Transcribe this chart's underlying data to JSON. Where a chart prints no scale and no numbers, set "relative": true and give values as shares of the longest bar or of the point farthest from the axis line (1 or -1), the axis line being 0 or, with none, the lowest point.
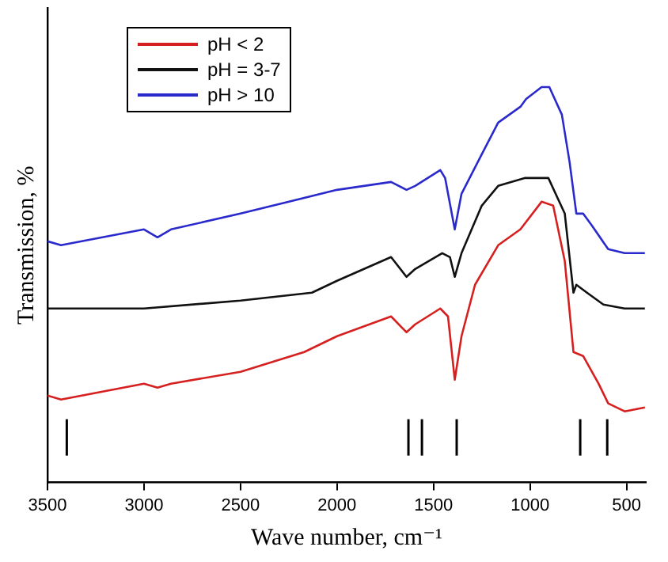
{
  "chart_data": {
    "type": "line",
    "relative": true,
    "xlabel": "Wave number, cm⁻¹",
    "ylabel": "Transmission, %",
    "xlim": [
      3500,
      400
    ],
    "xticks": [
      3500,
      3000,
      2500,
      2000,
      1500,
      1000,
      500
    ],
    "legend": "top left",
    "tick_labels": "x",
    "grid": false,
    "marker": "none",
    "line_style": "solid",
    "series": [
      {
        "name": "pH < 2",
        "color": "#d62020",
        "x": [
          3500,
          3430,
          3000,
          2930,
          2860,
          2500,
          2170,
          2000,
          1720,
          1640,
          1595,
          1465,
          1425,
          1390,
          1355,
          1285,
          1165,
          1050,
          940,
          880,
          820,
          775,
          725,
          645,
          595,
          510,
          405
        ],
        "values": [
          0.22,
          0.21,
          0.25,
          0.24,
          0.25,
          0.28,
          0.33,
          0.37,
          0.42,
          0.38,
          0.4,
          0.44,
          0.42,
          0.26,
          0.37,
          0.5,
          0.6,
          0.64,
          0.71,
          0.7,
          0.56,
          0.33,
          0.32,
          0.25,
          0.2,
          0.18,
          0.19
        ]
      },
      {
        "name": "pH = 3-7",
        "color": "#111111",
        "x": [
          3500,
          3430,
          3000,
          2500,
          2130,
          2000,
          1720,
          1640,
          1595,
          1455,
          1415,
          1390,
          1355,
          1250,
          1165,
          1025,
          905,
          820,
          775,
          760,
          705,
          620,
          510,
          405
        ],
        "values": [
          0.44,
          0.44,
          0.44,
          0.46,
          0.48,
          0.51,
          0.57,
          0.52,
          0.54,
          0.58,
          0.57,
          0.52,
          0.58,
          0.7,
          0.75,
          0.77,
          0.77,
          0.68,
          0.48,
          0.5,
          0.48,
          0.45,
          0.44,
          0.44
        ]
      },
      {
        "name": "pH > 10",
        "color": "#2a2acc",
        "x": [
          3500,
          3430,
          3000,
          2930,
          2860,
          2500,
          2000,
          1720,
          1640,
          1595,
          1465,
          1440,
          1390,
          1355,
          1250,
          1165,
          1050,
          1020,
          940,
          900,
          835,
          795,
          760,
          725,
          680,
          595,
          510,
          405
        ],
        "values": [
          0.61,
          0.6,
          0.64,
          0.62,
          0.64,
          0.68,
          0.74,
          0.76,
          0.74,
          0.75,
          0.79,
          0.77,
          0.64,
          0.73,
          0.83,
          0.91,
          0.95,
          0.97,
          1,
          1.0,
          0.93,
          0.81,
          0.68,
          0.68,
          0.65,
          0.59,
          0.58,
          0.58
        ]
      }
    ],
    "ref_lines": [
      {
        "axis": "x",
        "value": 3400,
        "color": "#000000"
      },
      {
        "axis": "x",
        "value": 1630,
        "color": "#000000"
      },
      {
        "axis": "x",
        "value": 1560,
        "color": "#000000"
      },
      {
        "axis": "x",
        "value": 1380,
        "color": "#000000"
      },
      {
        "axis": "x",
        "value": 740,
        "color": "#000000"
      },
      {
        "axis": "x",
        "value": 600,
        "color": "#000000"
      }
    ]
  }
}
